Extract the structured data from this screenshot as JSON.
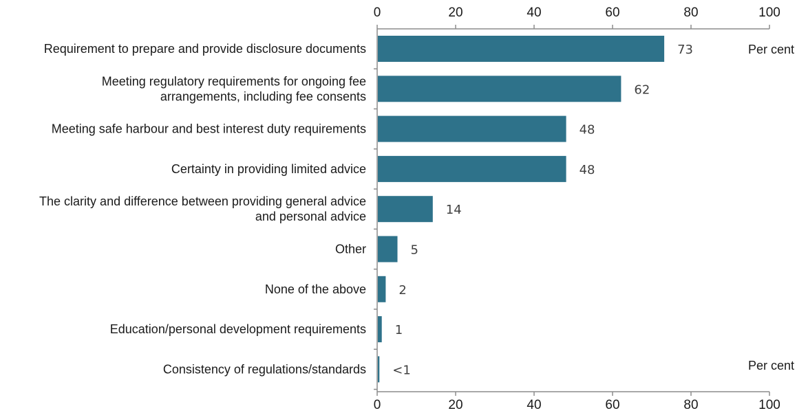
{
  "chart_data": {
    "type": "bar",
    "orientation": "horizontal",
    "unit_label_top": "Per cent",
    "unit_label_bottom": "Per cent",
    "xlim": [
      0,
      100
    ],
    "xticks": [
      "0",
      "20",
      "40",
      "60",
      "80",
      "100"
    ],
    "grid": false,
    "bar_color": "#2e728a",
    "categories": [
      "Requirement to prepare and provide disclosure documents",
      "Meeting regulatory requirements for ongoing fee arrangements, including fee consents",
      "Meeting safe harbour and best interest duty requirements",
      "Certainty in providing limited advice",
      "The clarity and difference between providing general advice and personal advice",
      "Other",
      "None of the above",
      "Education/personal development requirements",
      "Consistency of regulations/standards"
    ],
    "category_lines": [
      [
        "Requirement to prepare and provide disclosure documents"
      ],
      [
        "Meeting regulatory requirements for ongoing fee",
        "arrangements, including fee consents"
      ],
      [
        "Meeting safe harbour and best interest duty requirements"
      ],
      [
        "Certainty in providing limited advice"
      ],
      [
        "The clarity and difference between providing general advice",
        "and personal advice"
      ],
      [
        "Other"
      ],
      [
        "None of the above"
      ],
      [
        "Education/personal development requirements"
      ],
      [
        "Consistency of regulations/standards"
      ]
    ],
    "values": [
      73,
      62,
      48,
      48,
      14,
      5,
      2,
      1,
      0.4
    ],
    "value_labels": [
      "73",
      "62",
      "48",
      "48",
      "14",
      "5",
      "2",
      "1",
      "<1"
    ]
  }
}
